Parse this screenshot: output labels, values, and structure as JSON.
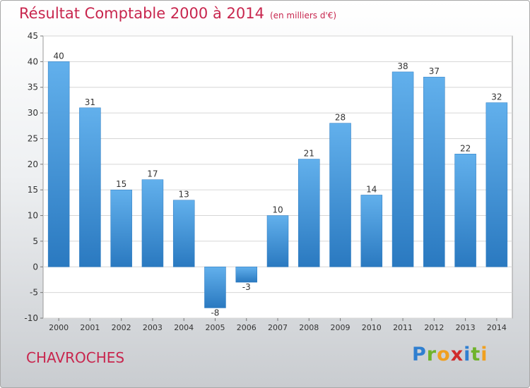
{
  "header": {
    "title": "Résultat Comptable 2000 à 2014",
    "subtitle": "(en milliers d'€)"
  },
  "footer": {
    "commune": "CHAVROCHES",
    "logo": [
      "P",
      "r",
      "o",
      "x",
      "i",
      "t",
      "i"
    ],
    "logo_colors": [
      "#2f7fd0",
      "#6fb32b",
      "#f0a020",
      "#d02c2c",
      "#2f7fd0",
      "#6fb32b",
      "#f0a020"
    ]
  },
  "colors": {
    "title": "#c8264e",
    "bar_light": "#62b0ec",
    "bar_dark": "#2a79c0"
  },
  "chart_data": {
    "type": "bar",
    "title": "Résultat Comptable 2000 à 2014",
    "xlabel": "",
    "ylabel": "",
    "ylim": [
      -10,
      45
    ],
    "yticks": [
      -10,
      -5,
      0,
      5,
      10,
      15,
      20,
      25,
      30,
      35,
      40,
      45
    ],
    "grid": true,
    "categories": [
      "2000",
      "2001",
      "2002",
      "2003",
      "2004",
      "2005",
      "2006",
      "2007",
      "2008",
      "2009",
      "2010",
      "2011",
      "2012",
      "2013",
      "2014"
    ],
    "values": [
      40,
      31,
      15,
      17,
      13,
      -8,
      -3,
      10,
      21,
      28,
      14,
      38,
      37,
      22,
      32
    ]
  }
}
